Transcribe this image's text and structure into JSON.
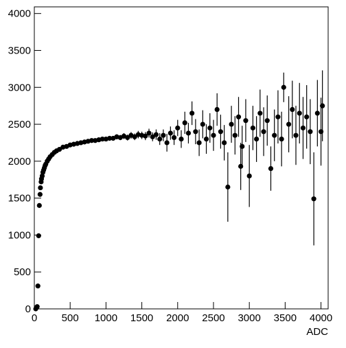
{
  "chart_data": {
    "type": "scatter",
    "x_label": "ADC",
    "xlim": [
      0,
      4100
    ],
    "ylim": [
      0,
      4090
    ],
    "xticks": [
      0,
      500,
      1000,
      1500,
      2000,
      2500,
      3000,
      3500,
      4000
    ],
    "yticks": [
      0,
      500,
      1000,
      1500,
      2000,
      2500,
      3000,
      3500,
      4000
    ],
    "color": "#000000",
    "x": [
      20,
      30,
      40,
      50,
      60,
      70,
      80,
      85,
      95,
      100,
      110,
      120,
      130,
      140,
      150,
      160,
      180,
      200,
      220,
      250,
      280,
      310,
      350,
      400,
      450,
      500,
      550,
      600,
      650,
      700,
      750,
      800,
      850,
      900,
      950,
      1000,
      1050,
      1100,
      1150,
      1200,
      1250,
      1300,
      1350,
      1400,
      1450,
      1500,
      1550,
      1600,
      1650,
      1700,
      1750,
      1800,
      1850,
      1900,
      1950,
      2000,
      2050,
      2100,
      2150,
      2200,
      2250,
      2300,
      2350,
      2400,
      2450,
      2500,
      2550,
      2600,
      2650,
      2700,
      2750,
      2800,
      2850,
      2880,
      2900,
      2950,
      3000,
      3050,
      3100,
      3150,
      3200,
      3250,
      3300,
      3350,
      3400,
      3450,
      3480,
      3550,
      3600,
      3650,
      3700,
      3750,
      3800,
      3850,
      3900,
      3950,
      4000,
      4020
    ],
    "values": [
      0,
      20,
      30,
      310,
      990,
      1400,
      1550,
      1640,
      1720,
      1760,
      1800,
      1850,
      1880,
      1910,
      1940,
      1960,
      2000,
      2030,
      2060,
      2090,
      2120,
      2140,
      2160,
      2190,
      2200,
      2220,
      2230,
      2240,
      2250,
      2260,
      2270,
      2280,
      2280,
      2290,
      2300,
      2300,
      2310,
      2310,
      2330,
      2320,
      2340,
      2320,
      2350,
      2330,
      2360,
      2350,
      2340,
      2380,
      2330,
      2360,
      2300,
      2350,
      2250,
      2380,
      2320,
      2450,
      2300,
      2520,
      2380,
      2650,
      2400,
      2250,
      2500,
      2300,
      2450,
      2350,
      2700,
      2400,
      2250,
      1650,
      2500,
      2350,
      2600,
      1930,
      2200,
      2550,
      1800,
      2450,
      2300,
      2650,
      2400,
      2550,
      1900,
      2350,
      2600,
      2300,
      3000,
      2500,
      2700,
      2350,
      2650,
      2450,
      2600,
      2400,
      1490,
      2650,
      2400,
      2750
    ],
    "errors": [
      5,
      8,
      10,
      15,
      15,
      15,
      15,
      15,
      15,
      15,
      15,
      15,
      15,
      15,
      15,
      15,
      15,
      15,
      15,
      15,
      15,
      15,
      15,
      15,
      15,
      15,
      15,
      20,
      20,
      20,
      20,
      20,
      25,
      25,
      25,
      30,
      30,
      30,
      35,
      35,
      40,
      40,
      45,
      45,
      50,
      50,
      55,
      60,
      60,
      70,
      80,
      80,
      120,
      90,
      100,
      110,
      120,
      150,
      140,
      160,
      170,
      180,
      190,
      200,
      200,
      210,
      220,
      230,
      240,
      470,
      250,
      260,
      270,
      320,
      280,
      290,
      420,
      300,
      310,
      320,
      330,
      340,
      300,
      350,
      360,
      370,
      200,
      380,
      390,
      400,
      410,
      420,
      430,
      440,
      630,
      450,
      460,
      480
    ]
  }
}
